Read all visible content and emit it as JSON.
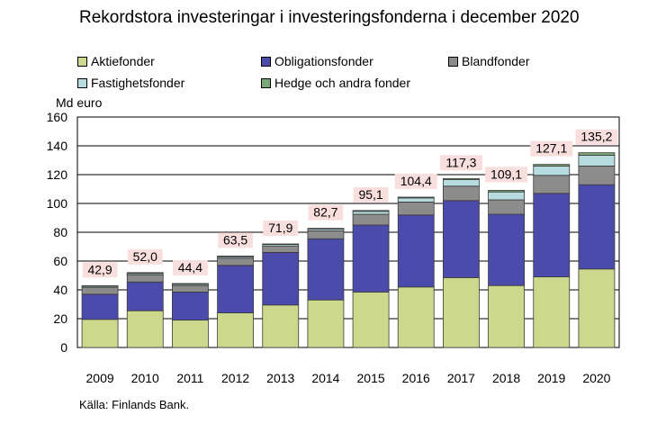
{
  "chart_data": {
    "type": "bar",
    "stacked": true,
    "title": "Rekordstora investeringar i investeringsfonderna i december 2020",
    "ylabel": "Md euro",
    "xlabel": "",
    "ylim": [
      0,
      160
    ],
    "yticks": [
      0,
      20,
      40,
      60,
      80,
      100,
      120,
      140,
      160
    ],
    "grid": true,
    "legend_position": "top",
    "categories": [
      "2009",
      "2010",
      "2011",
      "2012",
      "2013",
      "2014",
      "2015",
      "2016",
      "2017",
      "2018",
      "2019",
      "2020"
    ],
    "series": [
      {
        "name": "Aktiefonder",
        "color": "#ccd98c",
        "values": [
          19.5,
          25.5,
          19.0,
          24.0,
          29.5,
          33.0,
          38.5,
          42.0,
          48.5,
          43.0,
          49.0,
          54.5
        ]
      },
      {
        "name": "Obligationsfonder",
        "color": "#4b4bab",
        "values": [
          17.5,
          20.0,
          19.5,
          33.0,
          36.5,
          42.5,
          46.5,
          50.0,
          53.5,
          49.5,
          58.0,
          58.5
        ]
      },
      {
        "name": "Blandfonder",
        "color": "#8c8c8c",
        "values": [
          4.5,
          5.0,
          4.5,
          5.0,
          4.5,
          5.5,
          7.5,
          9.0,
          10.0,
          10.0,
          12.5,
          13.0
        ]
      },
      {
        "name": "Fastighetsfonder",
        "color": "#b6dce0",
        "values": [
          0.9,
          0.9,
          0.9,
          1.0,
          1.0,
          1.2,
          2.0,
          2.8,
          4.5,
          5.5,
          6.5,
          7.5
        ]
      },
      {
        "name": "Hedge och andra fonder",
        "color": "#7aa877",
        "values": [
          0.5,
          0.6,
          0.5,
          0.5,
          0.4,
          0.5,
          0.6,
          0.6,
          0.8,
          1.1,
          1.1,
          1.7
        ]
      }
    ],
    "totals": [
      "42,9",
      "52,0",
      "44,4",
      "63,5",
      "71,9",
      "82,7",
      "95,1",
      "104,4",
      "117,3",
      "109,1",
      "127,1",
      "135,2"
    ],
    "total_values": [
      42.9,
      52.0,
      44.4,
      63.5,
      71.9,
      82.7,
      95.1,
      104.4,
      117.3,
      109.1,
      127.1,
      135.2
    ],
    "total_label_bg": "#f9dede",
    "source": "Källa: Finlands Bank."
  }
}
